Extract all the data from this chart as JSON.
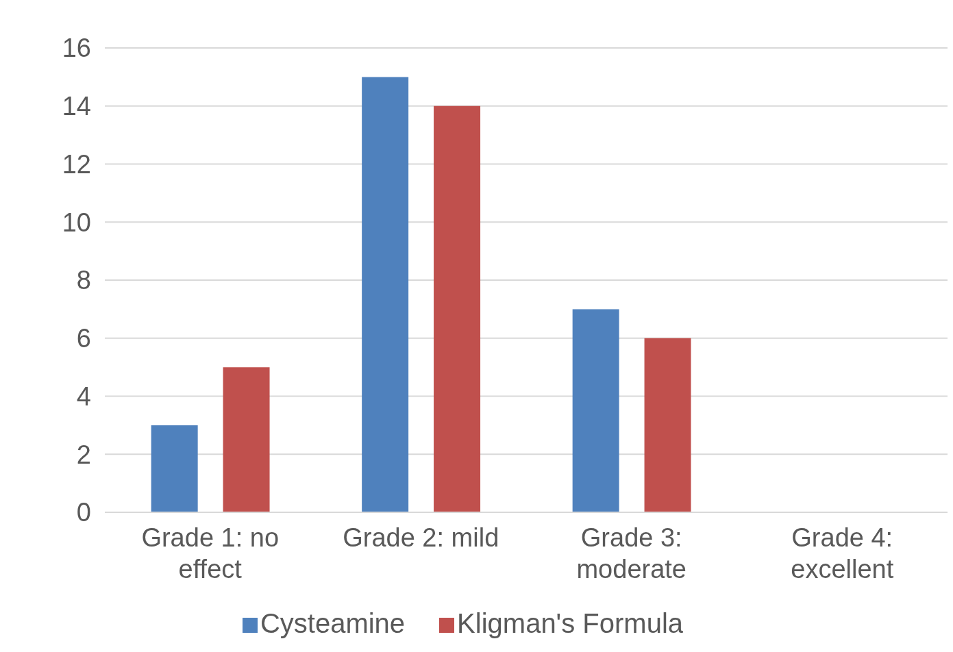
{
  "chart_data": {
    "type": "bar",
    "categories": [
      "Grade 1: no effect",
      "Grade 2:  mild",
      "Grade 3: moderate",
      "Grade 4: excellent"
    ],
    "series": [
      {
        "name": "Cysteamine",
        "color": "#4f81bd",
        "values": [
          3,
          15,
          7,
          0
        ]
      },
      {
        "name": "Kligman's Formula",
        "color": "#c0504d",
        "values": [
          5,
          14,
          6,
          0
        ]
      }
    ],
    "ylim": [
      0,
      16
    ],
    "yticks": [
      0,
      2,
      4,
      6,
      8,
      10,
      12,
      14,
      16
    ],
    "grid": "y",
    "legend": "bottom"
  }
}
